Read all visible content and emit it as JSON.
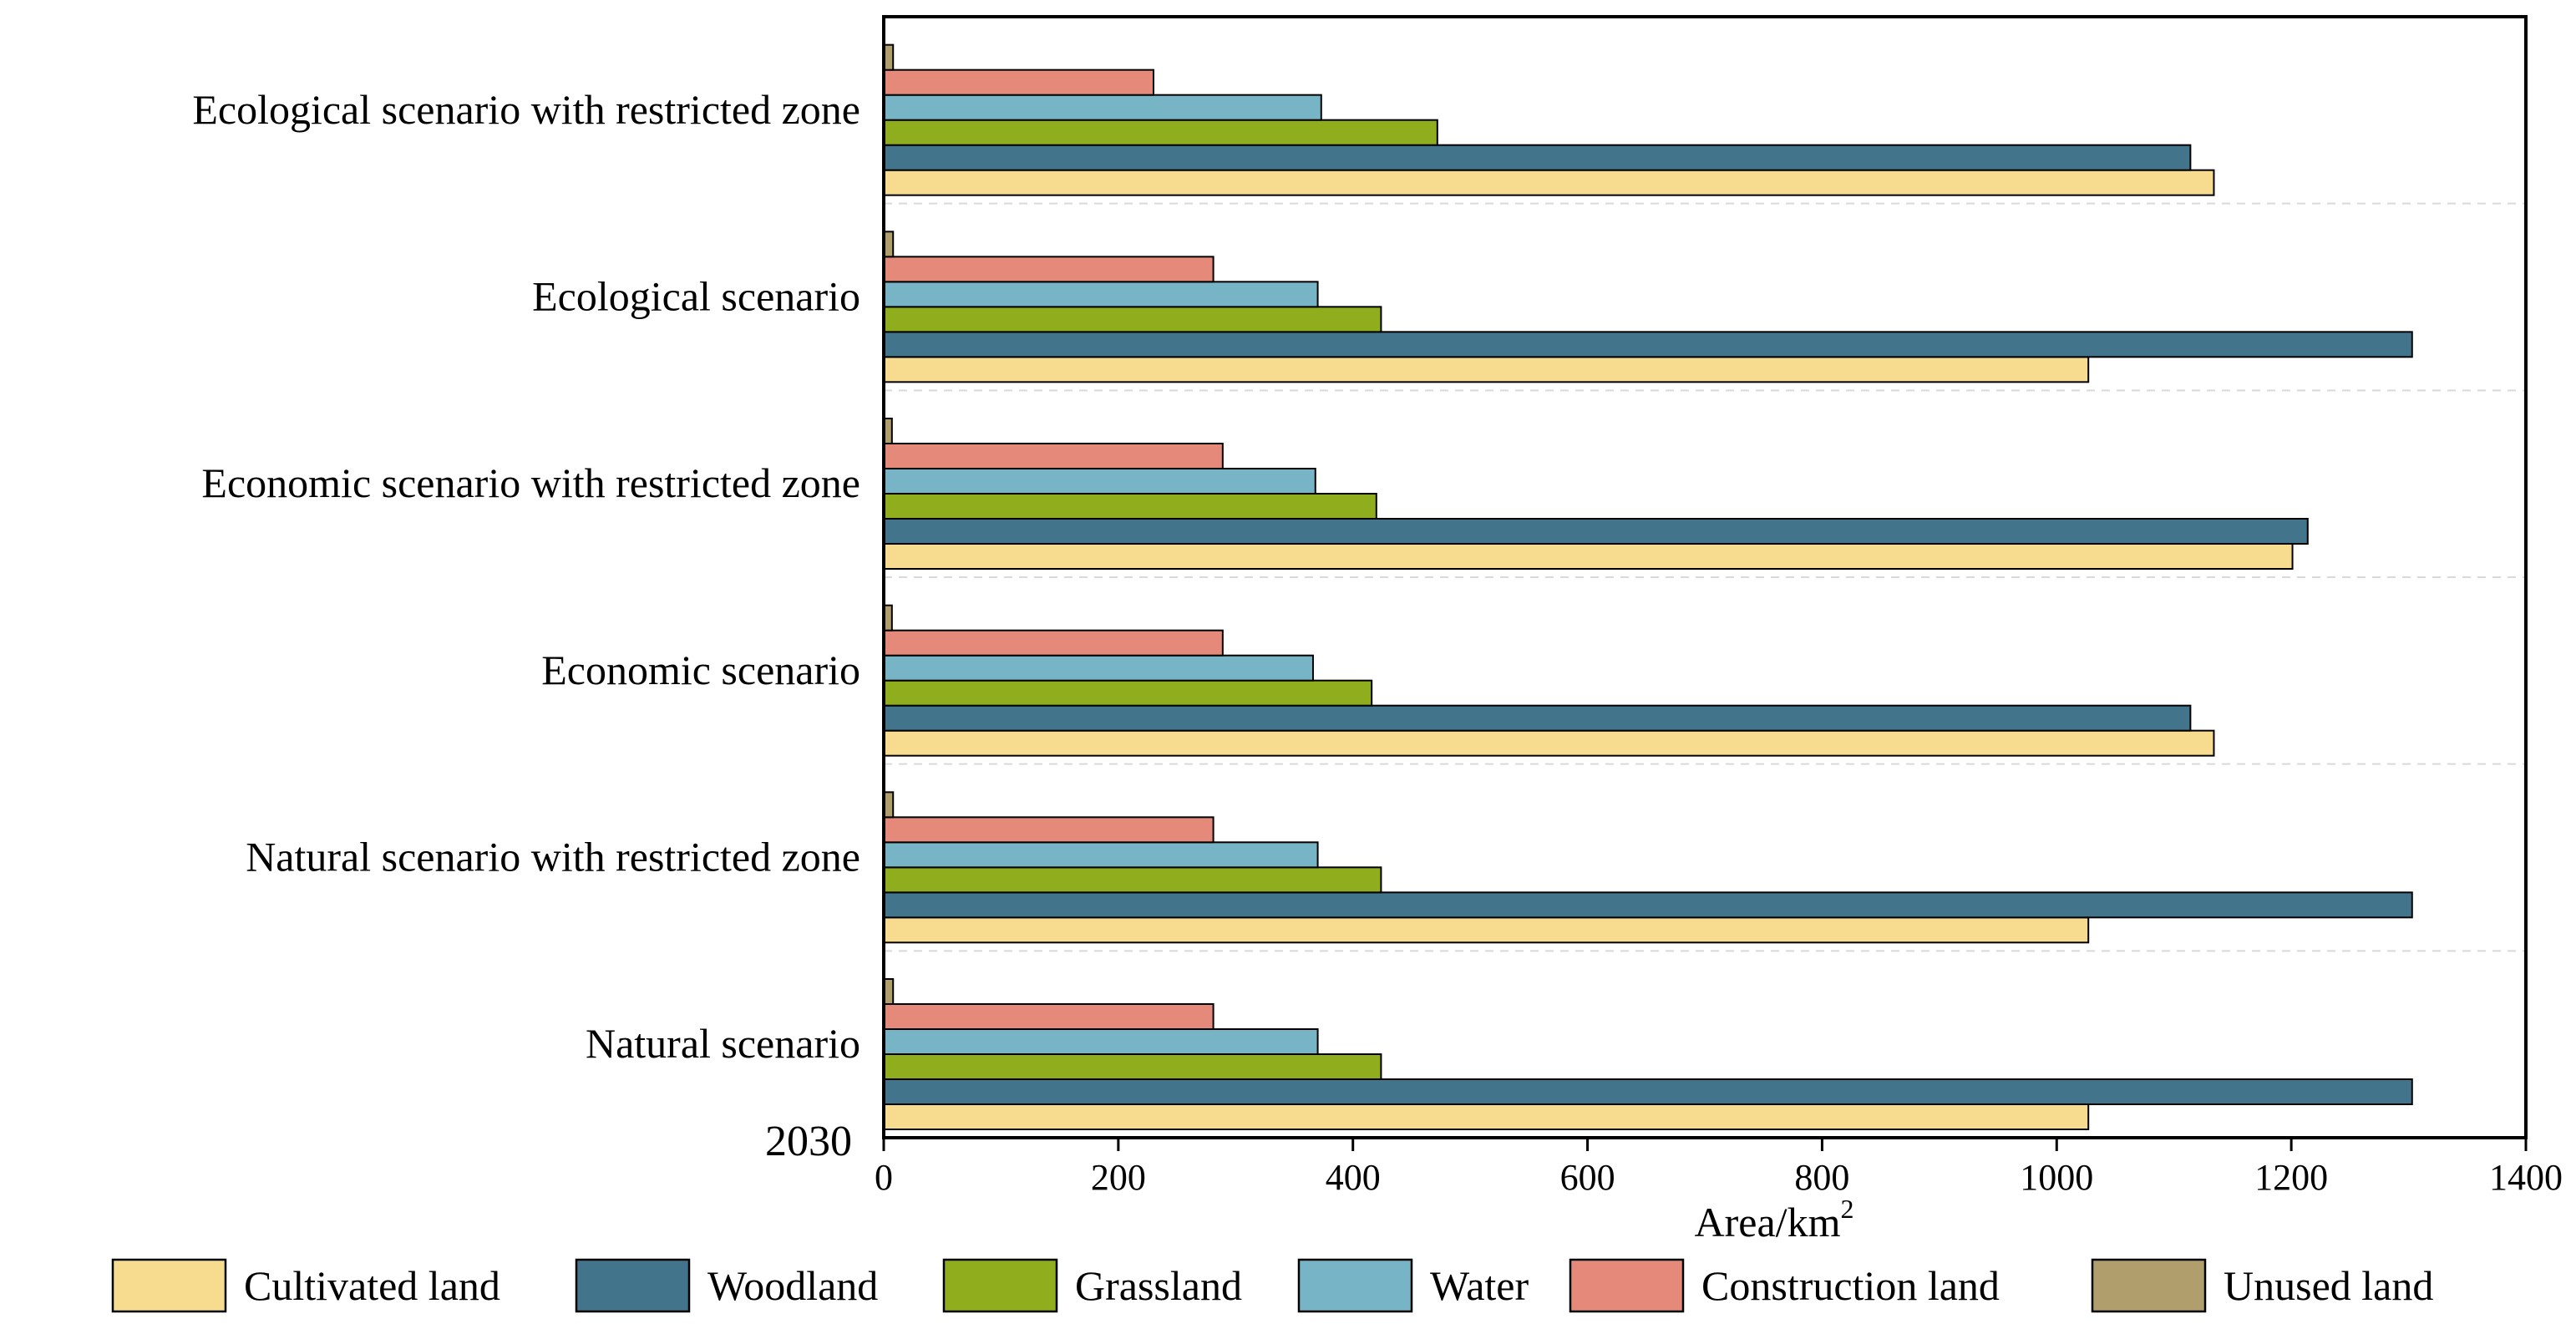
{
  "chart_data": {
    "type": "bar",
    "orientation": "horizontal",
    "categories": [
      "Natural scenario",
      "Natural scenario with restricted zone",
      "Economic scenario",
      "Economic scenario with restricted zone",
      "Ecological scenario",
      "Ecological scenario with restricted zone"
    ],
    "series": [
      {
        "name": "Cultivated land",
        "color": "#f7dc8f",
        "values": [
          1027,
          1027,
          1134,
          1201,
          1027,
          1134
        ]
      },
      {
        "name": "Woodland",
        "color": "#42748b",
        "values": [
          1303,
          1303,
          1114,
          1214,
          1303,
          1114
        ]
      },
      {
        "name": "Grassland",
        "color": "#8fad1c",
        "values": [
          424,
          424,
          416,
          420,
          424,
          472
        ]
      },
      {
        "name": "Water",
        "color": "#77b4c6",
        "values": [
          370,
          370,
          366,
          368,
          370,
          373
        ]
      },
      {
        "name": "Construction land",
        "color": "#e5897a",
        "values": [
          281,
          281,
          289,
          289,
          281,
          230
        ]
      },
      {
        "name": "Unused land",
        "color": "#b19e6d",
        "values": [
          8,
          8,
          7,
          7,
          8,
          8
        ]
      }
    ],
    "xlabel": "Area/km",
    "xlabel_superscript": "2",
    "xlim": [
      0,
      1400
    ],
    "xticks": [
      "0",
      "200",
      "400",
      "600",
      "800",
      "1000",
      "1200",
      "1400"
    ],
    "year_label": "2030",
    "grid": "dashed separators between categories",
    "legend_position": "bottom"
  }
}
